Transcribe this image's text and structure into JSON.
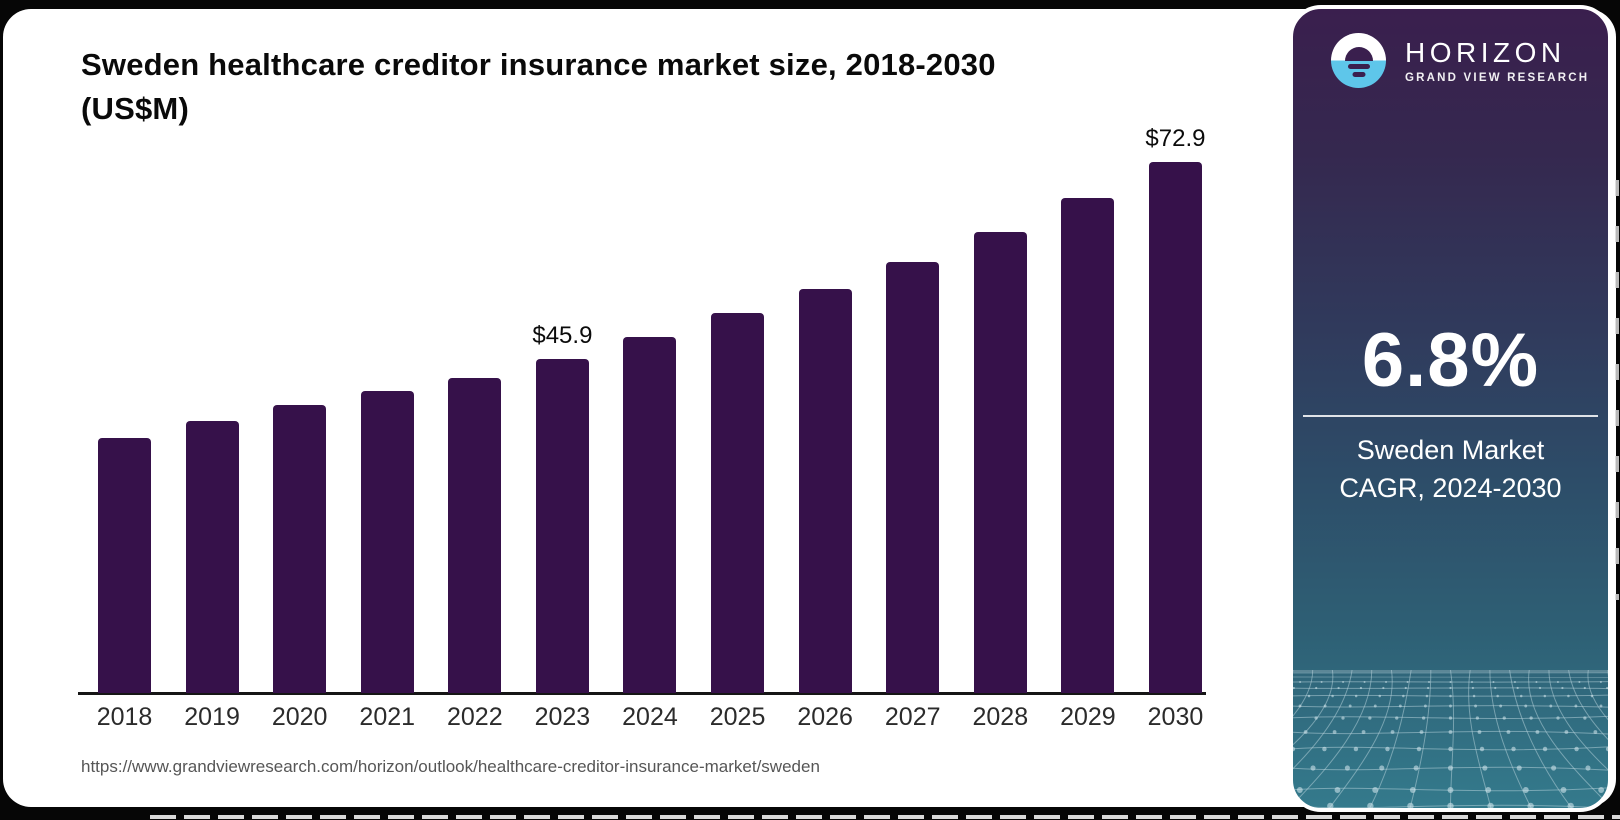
{
  "chart": {
    "title_line1": "Sweden healthcare creditor insurance market size, 2018-2030",
    "title_line2": "(US$M)",
    "source_url": "https://www.grandviewresearch.com/horizon/outlook/healthcare-creditor-insurance-market/sweden",
    "bar_color": "#36114a",
    "axis_color": "#161616"
  },
  "chart_data": {
    "type": "bar",
    "title": "Sweden healthcare creditor insurance market size, 2018-2030 (US$M)",
    "categories": [
      "2018",
      "2019",
      "2020",
      "2021",
      "2022",
      "2023",
      "2024",
      "2025",
      "2026",
      "2027",
      "2028",
      "2029",
      "2030"
    ],
    "values": [
      35.0,
      37.3,
      39.5,
      41.4,
      43.3,
      45.9,
      48.9,
      52.2,
      55.5,
      59.2,
      63.3,
      67.9,
      72.9
    ],
    "point_labels": {
      "2023": "$45.9",
      "2030": "$72.9"
    },
    "xlabel": "",
    "ylabel": "US$M",
    "ylim": [
      0,
      76
    ],
    "grid": false,
    "legend": false
  },
  "sidebar": {
    "brand": "HORIZON",
    "brand_sub": "GRAND VIEW RESEARCH",
    "stat_value": "6.8%",
    "stat_label_line1": "Sweden Market",
    "stat_label_line2": "CAGR, 2024-2030",
    "colors": {
      "top": "#3a1f4e",
      "bottom": "#347a8c",
      "logo_blue": "#5ec6ea",
      "mesh_line": "rgba(190,216,224,0.5)"
    }
  }
}
